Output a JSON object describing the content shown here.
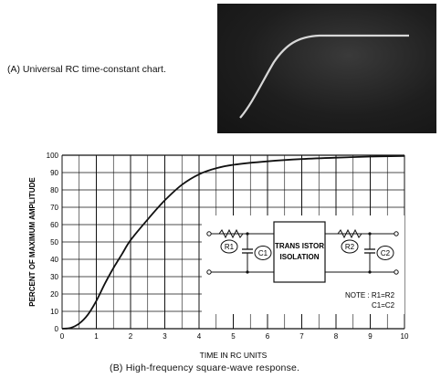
{
  "captions": {
    "a": "(A) Universal RC time-constant chart.",
    "b": "(B)  High-frequency  square-wave  response."
  },
  "chart_data": {
    "type": "line",
    "xlabel": "TIME IN RC UNITS",
    "ylabel": "PERCENT OF MAXIMUM AMPLITUDE",
    "xlim": [
      0,
      10
    ],
    "ylim": [
      0,
      100
    ],
    "x_ticks": [
      "0",
      "1",
      "2",
      "3",
      "4",
      "5",
      "6",
      "7",
      "8",
      "9",
      "10"
    ],
    "y_ticks": [
      "0",
      "10",
      "20",
      "30",
      "40",
      "50",
      "60",
      "70",
      "80",
      "90",
      "100"
    ],
    "grid": true,
    "series": [
      {
        "x": [
          0,
          0.25,
          0.5,
          0.75,
          1,
          1.25,
          1.5,
          1.75,
          2,
          2.5,
          3,
          3.5,
          4,
          4.5,
          5,
          6,
          7,
          8,
          9,
          10
        ],
        "y": [
          0,
          0.5,
          3,
          8,
          16,
          26,
          35,
          43,
          51,
          63,
          74,
          83,
          89,
          92.5,
          94.5,
          96.5,
          97.8,
          98.6,
          99.2,
          99.5
        ]
      }
    ]
  },
  "inset": {
    "r1": "R1",
    "c1": "C1",
    "r2": "R2",
    "c2": "C2",
    "box_line1": "TRANS ISTOR",
    "box_line2": "ISOLATION",
    "note_line1": "NOTE : R1=R2",
    "note_line2": "C1=C2"
  }
}
